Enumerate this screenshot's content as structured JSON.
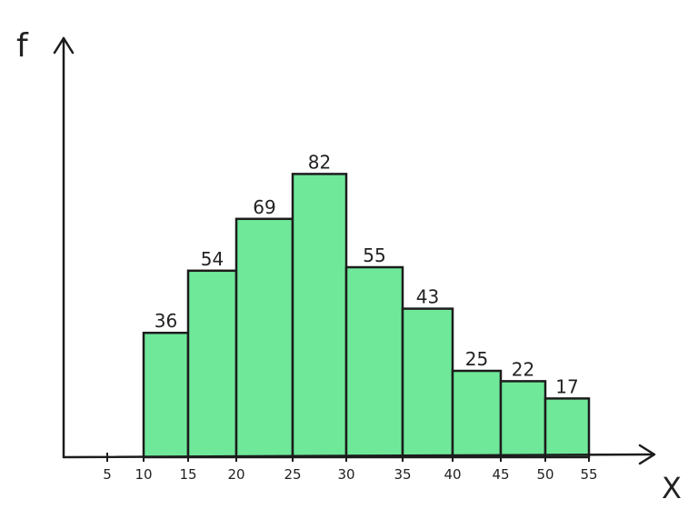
{
  "chart_data": {
    "type": "bar",
    "subtype": "histogram",
    "y_axis_label": "f",
    "x_axis_label": "X",
    "x_ticks": [
      5,
      10,
      15,
      20,
      25,
      30,
      35,
      40,
      45,
      50,
      55
    ],
    "bins": [
      {
        "from": 10,
        "to": 15,
        "value": 36
      },
      {
        "from": 15,
        "to": 20,
        "value": 54
      },
      {
        "from": 20,
        "to": 25,
        "value": 69
      },
      {
        "from": 25,
        "to": 30,
        "value": 82
      },
      {
        "from": 30,
        "to": 35,
        "value": 55
      },
      {
        "from": 35,
        "to": 40,
        "value": 43
      },
      {
        "from": 40,
        "to": 45,
        "value": 25
      },
      {
        "from": 45,
        "to": 50,
        "value": 22
      },
      {
        "from": 50,
        "to": 55,
        "value": 17
      }
    ],
    "data_labels": true,
    "grid": false,
    "colors": {
      "bar_fill": "#6fe89a",
      "stroke": "#1c1c1c"
    }
  }
}
